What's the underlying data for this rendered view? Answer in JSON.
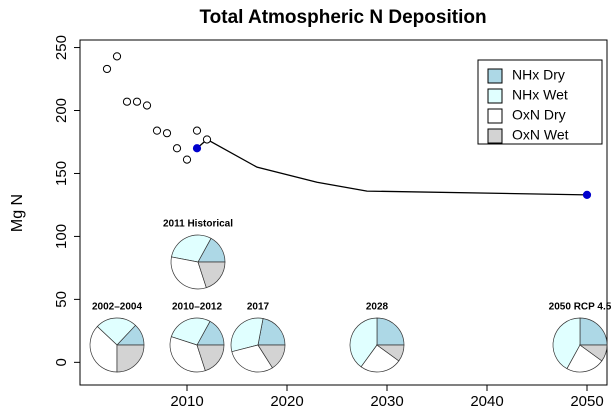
{
  "chart_data": [
    {
      "type": "line",
      "title": "Total Atmospheric N Deposition",
      "ylabel": "Mg N",
      "xlim": [
        1999.3,
        2052
      ],
      "ylim": [
        -18,
        256
      ],
      "xticks": [
        2010,
        2020,
        2030,
        2040,
        2050
      ],
      "yticks": [
        0,
        50,
        100,
        150,
        200,
        250
      ],
      "series": [
        {
          "mode": "markers",
          "color": "#ffffff",
          "x": [
            2002,
            2003,
            2004,
            2005,
            2006,
            2007,
            2008,
            2009,
            2010,
            2011,
            2012
          ],
          "values": [
            233,
            243,
            207,
            207,
            204,
            184,
            182,
            170,
            161,
            184,
            177
          ]
        },
        {
          "mode": "lines",
          "color": "#000000",
          "x": [
            2011,
            2012,
            2017,
            2023,
            2028,
            2050
          ],
          "values": [
            170,
            177,
            155,
            143,
            136,
            133
          ]
        },
        {
          "mode": "markers",
          "color": "#0000cd",
          "x": [
            2011,
            2050
          ],
          "values": [
            170,
            133
          ]
        }
      ]
    },
    {
      "type": "pie",
      "categories": [
        "NHx Dry",
        "NHx Wet",
        "OxN Dry",
        "OxN Wet"
      ],
      "colors": [
        "#add8e6",
        "#e0ffff",
        "#ffffff",
        "#d3d3d3"
      ],
      "legend": "top-right",
      "series": [
        {
          "name": "2002–2004",
          "values": [
            13,
            25,
            37,
            25
          ]
        },
        {
          "name": "2010–2012",
          "values": [
            17,
            28,
            35,
            20
          ]
        },
        {
          "name": "2017",
          "values": [
            22,
            32,
            30,
            16
          ]
        },
        {
          "name": "2028",
          "values": [
            25,
            40,
            25,
            10
          ]
        },
        {
          "name": "2050 RCP 4.5",
          "values": [
            25,
            42,
            23,
            10
          ]
        },
        {
          "name": "2011 Historical",
          "values": [
            17,
            30,
            33,
            20
          ]
        }
      ]
    }
  ]
}
